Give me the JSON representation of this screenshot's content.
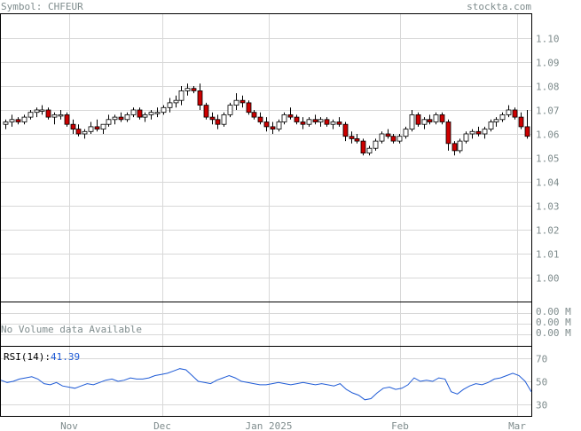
{
  "header": {
    "symbol_label": "Symbol: CHFEUR",
    "site": "stockta.com"
  },
  "colors": {
    "label": "#7f8c8d",
    "grid": "#d8d8d8",
    "frame": "#000000",
    "candle_up": "#ffffff",
    "candle_down": "#cc0000",
    "rsi_line": "#1f5bd6",
    "rsi_value": "#1f5bd6"
  },
  "chart_data": [
    {
      "type": "candlestick",
      "title": "",
      "x_labels": [
        "Nov",
        "Dec",
        "Jan 2025",
        "Feb",
        "Mar"
      ],
      "ylim": [
        0.99,
        1.11
      ],
      "yticks": [
        1.0,
        1.01,
        1.02,
        1.03,
        1.04,
        1.05,
        1.06,
        1.07,
        1.08,
        1.09,
        1.1
      ],
      "grid": true,
      "candles": [
        [
          1.064,
          1.066,
          1.062,
          1.065
        ],
        [
          1.065,
          1.068,
          1.063,
          1.066
        ],
        [
          1.066,
          1.067,
          1.064,
          1.065
        ],
        [
          1.065,
          1.068,
          1.064,
          1.067
        ],
        [
          1.067,
          1.07,
          1.066,
          1.069
        ],
        [
          1.069,
          1.071,
          1.067,
          1.07
        ],
        [
          1.07,
          1.072,
          1.068,
          1.07
        ],
        [
          1.07,
          1.071,
          1.066,
          1.067
        ],
        [
          1.067,
          1.069,
          1.064,
          1.068
        ],
        [
          1.068,
          1.07,
          1.066,
          1.068
        ],
        [
          1.068,
          1.069,
          1.063,
          1.064
        ],
        [
          1.064,
          1.066,
          1.06,
          1.062
        ],
        [
          1.062,
          1.064,
          1.059,
          1.06
        ],
        [
          1.06,
          1.062,
          1.058,
          1.061
        ],
        [
          1.061,
          1.065,
          1.06,
          1.063
        ],
        [
          1.063,
          1.066,
          1.061,
          1.062
        ],
        [
          1.062,
          1.064,
          1.06,
          1.064
        ],
        [
          1.064,
          1.068,
          1.063,
          1.066
        ],
        [
          1.066,
          1.068,
          1.064,
          1.067
        ],
        [
          1.067,
          1.069,
          1.065,
          1.066
        ],
        [
          1.066,
          1.069,
          1.065,
          1.068
        ],
        [
          1.068,
          1.071,
          1.067,
          1.07
        ],
        [
          1.07,
          1.071,
          1.066,
          1.067
        ],
        [
          1.067,
          1.069,
          1.065,
          1.068
        ],
        [
          1.068,
          1.07,
          1.066,
          1.069
        ],
        [
          1.069,
          1.071,
          1.067,
          1.069
        ],
        [
          1.069,
          1.072,
          1.068,
          1.071
        ],
        [
          1.071,
          1.075,
          1.069,
          1.073
        ],
        [
          1.073,
          1.076,
          1.071,
          1.074
        ],
        [
          1.074,
          1.08,
          1.072,
          1.078
        ],
        [
          1.078,
          1.081,
          1.076,
          1.079
        ],
        [
          1.079,
          1.08,
          1.077,
          1.078
        ],
        [
          1.078,
          1.081,
          1.07,
          1.072
        ],
        [
          1.072,
          1.073,
          1.066,
          1.067
        ],
        [
          1.067,
          1.069,
          1.064,
          1.066
        ],
        [
          1.066,
          1.068,
          1.062,
          1.064
        ],
        [
          1.064,
          1.069,
          1.063,
          1.068
        ],
        [
          1.068,
          1.073,
          1.067,
          1.072
        ],
        [
          1.072,
          1.077,
          1.07,
          1.074
        ],
        [
          1.074,
          1.076,
          1.071,
          1.073
        ],
        [
          1.073,
          1.074,
          1.068,
          1.069
        ],
        [
          1.069,
          1.07,
          1.066,
          1.067
        ],
        [
          1.067,
          1.069,
          1.064,
          1.065
        ],
        [
          1.065,
          1.067,
          1.061,
          1.063
        ],
        [
          1.063,
          1.065,
          1.06,
          1.062
        ],
        [
          1.062,
          1.066,
          1.061,
          1.065
        ],
        [
          1.065,
          1.069,
          1.064,
          1.068
        ],
        [
          1.068,
          1.071,
          1.066,
          1.067
        ],
        [
          1.067,
          1.068,
          1.064,
          1.065
        ],
        [
          1.065,
          1.067,
          1.062,
          1.064
        ],
        [
          1.064,
          1.067,
          1.063,
          1.066
        ],
        [
          1.066,
          1.068,
          1.064,
          1.065
        ],
        [
          1.065,
          1.067,
          1.063,
          1.066
        ],
        [
          1.066,
          1.067,
          1.063,
          1.064
        ],
        [
          1.064,
          1.066,
          1.062,
          1.065
        ],
        [
          1.065,
          1.067,
          1.063,
          1.064
        ],
        [
          1.064,
          1.065,
          1.057,
          1.059
        ],
        [
          1.059,
          1.061,
          1.056,
          1.058
        ],
        [
          1.058,
          1.06,
          1.056,
          1.057
        ],
        [
          1.057,
          1.058,
          1.051,
          1.052
        ],
        [
          1.052,
          1.055,
          1.051,
          1.054
        ],
        [
          1.054,
          1.058,
          1.053,
          1.057
        ],
        [
          1.057,
          1.061,
          1.056,
          1.06
        ],
        [
          1.06,
          1.062,
          1.058,
          1.059
        ],
        [
          1.059,
          1.06,
          1.056,
          1.057
        ],
        [
          1.057,
          1.06,
          1.056,
          1.059
        ],
        [
          1.059,
          1.063,
          1.058,
          1.062
        ],
        [
          1.062,
          1.07,
          1.061,
          1.068
        ],
        [
          1.068,
          1.069,
          1.063,
          1.064
        ],
        [
          1.064,
          1.067,
          1.062,
          1.066
        ],
        [
          1.066,
          1.068,
          1.064,
          1.065
        ],
        [
          1.065,
          1.069,
          1.064,
          1.068
        ],
        [
          1.068,
          1.069,
          1.064,
          1.065
        ],
        [
          1.065,
          1.066,
          1.053,
          1.056
        ],
        [
          1.056,
          1.057,
          1.051,
          1.053
        ],
        [
          1.053,
          1.058,
          1.052,
          1.057
        ],
        [
          1.057,
          1.061,
          1.056,
          1.06
        ],
        [
          1.06,
          1.062,
          1.058,
          1.061
        ],
        [
          1.061,
          1.063,
          1.059,
          1.06
        ],
        [
          1.06,
          1.063,
          1.058,
          1.062
        ],
        [
          1.062,
          1.066,
          1.061,
          1.065
        ],
        [
          1.065,
          1.067,
          1.063,
          1.066
        ],
        [
          1.066,
          1.069,
          1.065,
          1.068
        ],
        [
          1.068,
          1.072,
          1.067,
          1.07
        ],
        [
          1.07,
          1.071,
          1.066,
          1.067
        ],
        [
          1.067,
          1.069,
          1.062,
          1.063
        ],
        [
          1.063,
          1.07,
          1.058,
          1.059
        ]
      ]
    },
    {
      "type": "text",
      "title": "No Volume data Available",
      "yticks_labels": [
        "0.00 M",
        "0.00 M",
        "0.00 M"
      ]
    },
    {
      "type": "line",
      "series": [
        {
          "name": "RSI(14)",
          "latest": "41.39",
          "values": [
            51,
            49,
            50,
            52,
            53,
            54,
            52,
            48,
            47,
            49,
            46,
            45,
            44,
            46,
            48,
            47,
            49,
            51,
            52,
            50,
            51,
            53,
            52,
            52,
            53,
            55,
            56,
            57,
            59,
            61,
            60,
            55,
            50,
            49,
            48,
            51,
            53,
            55,
            53,
            50,
            49,
            48,
            47,
            47,
            48,
            49,
            48,
            47,
            48,
            49,
            48,
            47,
            48,
            47,
            46,
            48,
            43,
            40,
            38,
            34,
            35,
            40,
            44,
            45,
            43,
            44,
            47,
            53,
            50,
            51,
            50,
            53,
            52,
            41,
            39,
            43,
            46,
            48,
            47,
            49,
            52,
            53,
            55,
            57,
            55,
            50,
            41
          ]
        }
      ],
      "ylim": [
        20,
        80
      ],
      "yticks": [
        30,
        50,
        70
      ]
    }
  ]
}
